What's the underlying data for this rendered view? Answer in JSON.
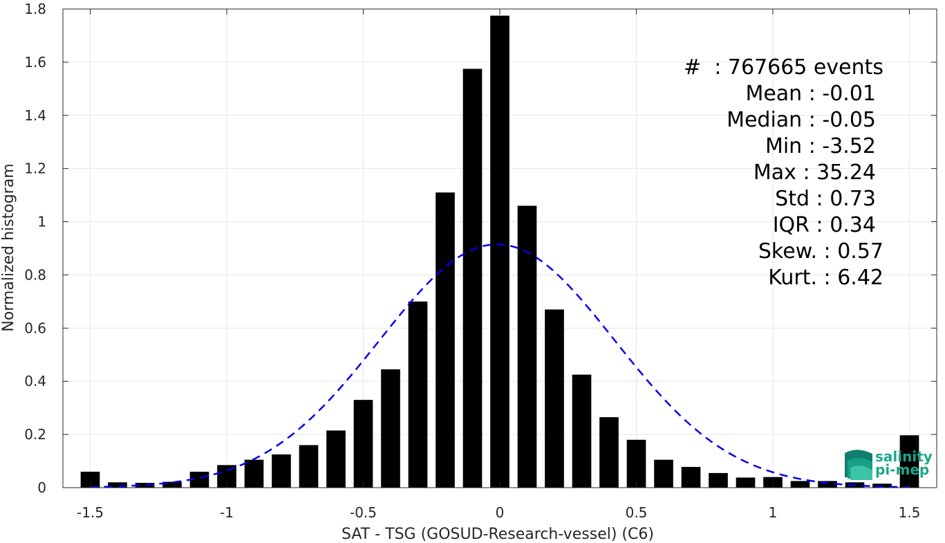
{
  "chart_data": {
    "type": "bar",
    "title": "",
    "xlabel": "SAT - TSG (GOSUD-Research-vessel) (C6)",
    "ylabel": "Normalized histogram",
    "xlim": [
      -1.6,
      1.6
    ],
    "ylim": [
      0,
      1.8
    ],
    "xticks": [
      -1.5,
      -1,
      -0.5,
      0,
      0.5,
      1,
      1.5
    ],
    "xtick_labels": [
      "-1.5",
      "-1",
      "-0.5",
      "0",
      "0.5",
      "1",
      "1.5"
    ],
    "yticks": [
      0,
      0.2,
      0.4,
      0.6,
      0.8,
      1,
      1.2,
      1.4,
      1.6,
      1.8
    ],
    "ytick_labels": [
      "0",
      "0.2",
      "0.4",
      "0.6",
      "0.8",
      "1",
      "1.2",
      "1.4",
      "1.6",
      "1.8"
    ],
    "grid": true,
    "bar_color": "#000000",
    "bin_width": 0.1,
    "bin_centers": [
      -1.5,
      -1.4,
      -1.3,
      -1.2,
      -1.1,
      -1.0,
      -0.9,
      -0.8,
      -0.7,
      -0.6,
      -0.5,
      -0.4,
      -0.3,
      -0.2,
      -0.1,
      0.0,
      0.1,
      0.2,
      0.3,
      0.4,
      0.5,
      0.6,
      0.7,
      0.8,
      0.9,
      1.0,
      1.1,
      1.2,
      1.3,
      1.4,
      1.5
    ],
    "values": [
      0.06,
      0.02,
      0.018,
      0.022,
      0.06,
      0.085,
      0.105,
      0.125,
      0.16,
      0.215,
      0.33,
      0.445,
      0.7,
      1.11,
      1.575,
      1.775,
      1.06,
      0.67,
      0.425,
      0.265,
      0.18,
      0.105,
      0.078,
      0.055,
      0.038,
      0.04,
      0.025,
      0.025,
      0.02,
      0.015,
      0.197
    ],
    "fit_curve": {
      "type": "gaussian",
      "mean": -0.01,
      "std": 0.43,
      "peak": 0.915,
      "x_range": [
        -1.5,
        1.5
      ],
      "color": "#0000ee",
      "style": "dashed"
    },
    "stats": {
      "lines": [
        "#  : 767665 events",
        "Mean : -0.01",
        "Median : -0.05",
        "Min : -3.52",
        "Max : 35.24",
        "Std : 0.73",
        "IQR : 0.34",
        "Skew. : 0.57",
        "Kurt. : 6.42"
      ],
      "placement": "top-right"
    },
    "logo": {
      "text_line1": "salinity",
      "text_line2": "pi-mep",
      "color": "#1aa88c",
      "placement": "bottom-right"
    }
  }
}
